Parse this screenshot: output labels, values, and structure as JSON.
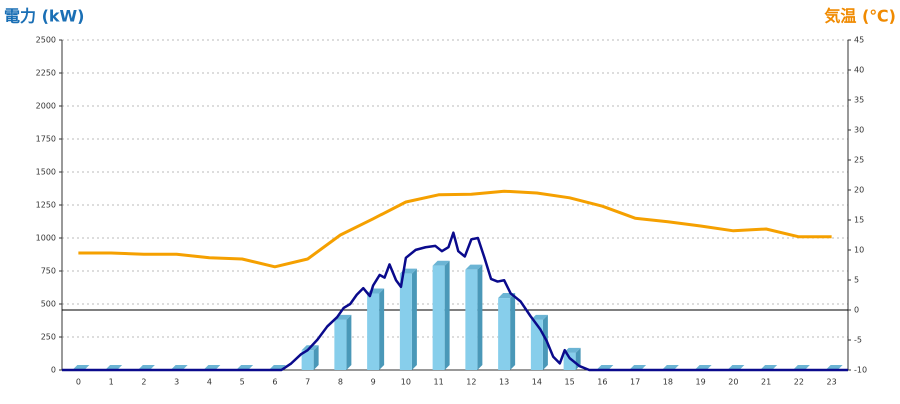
{
  "chart_data": {
    "type": "combo",
    "y_label": "電力 (kW)",
    "y2_label": "気温 (℃)",
    "categories": [
      "0",
      "1",
      "2",
      "3",
      "4",
      "5",
      "6",
      "7",
      "8",
      "9",
      "10",
      "11",
      "12",
      "13",
      "14",
      "15",
      "16",
      "17",
      "18",
      "19",
      "20",
      "21",
      "22",
      "23"
    ],
    "xlim": [
      -0.5,
      23.5
    ],
    "ylim": [
      0,
      2500
    ],
    "yticks": [
      0,
      250,
      500,
      750,
      1000,
      1250,
      1500,
      1750,
      2000,
      2250,
      2500
    ],
    "y2lim": [
      -10,
      45
    ],
    "y2ticks": [
      -10,
      -5,
      0,
      5,
      10,
      15,
      20,
      25,
      30,
      35,
      40,
      45
    ],
    "grid": true,
    "reference_line": {
      "axis": "y2",
      "value": 0
    },
    "series": [
      {
        "type": "bar3d",
        "color": "#87ceeb",
        "values": [
          0,
          0,
          0,
          0,
          0,
          0,
          0,
          150,
          380,
          580,
          730,
          790,
          760,
          545,
          380,
          130,
          0,
          0,
          0,
          0,
          0,
          0,
          0,
          0
        ]
      },
      {
        "type": "xyline",
        "color": "#0a0a8c",
        "x": [
          -0.5,
          6.2,
          6.5,
          6.8,
          7.0,
          7.3,
          7.6,
          7.9,
          8.1,
          8.3,
          8.5,
          8.7,
          8.9,
          9.0,
          9.2,
          9.35,
          9.5,
          9.7,
          9.85,
          10.0,
          10.3,
          10.6,
          10.9,
          11.1,
          11.3,
          11.45,
          11.6,
          11.8,
          12.0,
          12.2,
          12.4,
          12.6,
          12.8,
          13.0,
          13.2,
          13.5,
          13.8,
          14.1,
          14.3,
          14.5,
          14.7,
          14.85,
          15.0,
          15.3,
          15.6,
          23.5
        ],
        "values": [
          0,
          0,
          50,
          120,
          150,
          230,
          330,
          400,
          470,
          500,
          570,
          620,
          560,
          640,
          720,
          700,
          800,
          680,
          630,
          850,
          910,
          930,
          940,
          900,
          930,
          1040,
          900,
          860,
          990,
          1000,
          850,
          690,
          670,
          680,
          580,
          520,
          410,
          310,
          220,
          100,
          50,
          150,
          90,
          30,
          0,
          0
        ]
      },
      {
        "type": "catline",
        "color": "#f5a000",
        "axis": "y2",
        "values": [
          9.5,
          9.5,
          9.3,
          9.3,
          8.7,
          8.5,
          7.2,
          8.5,
          12.5,
          15.2,
          18,
          19.2,
          19.3,
          19.8,
          19.5,
          18.7,
          17.3,
          15.3,
          14.7,
          14,
          13.2,
          13.5,
          12.2,
          12.2
        ]
      }
    ]
  }
}
